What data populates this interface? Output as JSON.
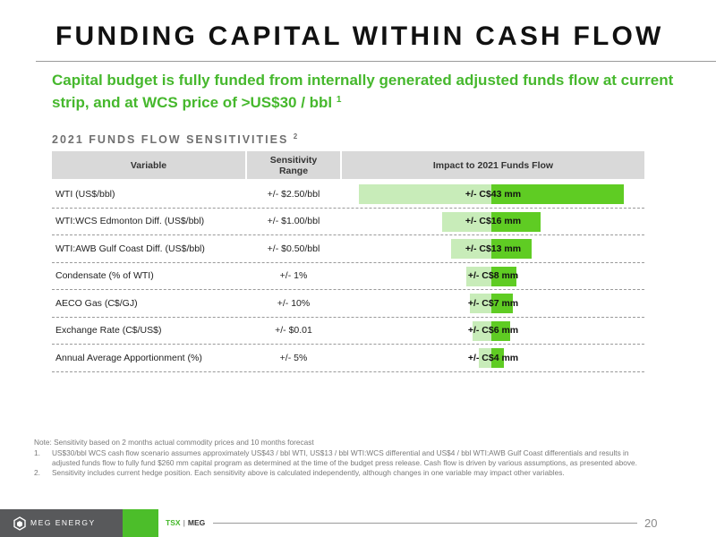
{
  "page": {
    "title": "FUNDING CAPITAL WITHIN CASH FLOW",
    "subtitle": "Capital budget is fully funded from internally generated adjusted funds flow at current strip, and at WCS price of >US$30 / bbl",
    "subtitle_note": "1",
    "section_heading": "2021 FUNDS FLOW SENSITIVITIES",
    "section_note": "2"
  },
  "table": {
    "headers": {
      "variable": "Variable",
      "range_line1": "Sensitivity",
      "range_line2": "Range",
      "impact": "Impact to 2021 Funds Flow"
    },
    "rows": [
      {
        "variable": "WTI (US$/bbl)",
        "range": "+/- $2.50/bbl",
        "impact_label": "+/- C$43 mm",
        "impact_mm": 43
      },
      {
        "variable": "WTI:WCS Edmonton Diff. (US$/bbl)",
        "range": "+/- $1.00/bbl",
        "impact_label": "+/- C$16 mm",
        "impact_mm": 16
      },
      {
        "variable": "WTI:AWB Gulf Coast Diff. (US$/bbl)",
        "range": "+/- $0.50/bbl",
        "impact_label": "+/- C$13 mm",
        "impact_mm": 13
      },
      {
        "variable": "Condensate (% of WTI)",
        "range": "+/- 1%",
        "impact_label": "+/- C$8 mm",
        "impact_mm": 8
      },
      {
        "variable": "AECO Gas (C$/GJ)",
        "range": "+/- 10%",
        "impact_label": "+/- C$7 mm",
        "impact_mm": 7
      },
      {
        "variable": "Exchange Rate (C$/US$)",
        "range": "+/- $0.01",
        "impact_label": "+/- C$6 mm",
        "impact_mm": 6
      },
      {
        "variable": "Annual Average Apportionment (%)",
        "range": "+/- 5%",
        "impact_label": "+/- C$4 mm",
        "impact_mm": 4
      }
    ],
    "colors": {
      "bar_low": "#c8ecb9",
      "bar_high": "#5fcc23",
      "header_bg": "#d9d9d9"
    }
  },
  "footnotes": {
    "note": "Note: Sensitivity based on 2 months actual commodity prices and 10 months forecast",
    "items": [
      {
        "num": "1.",
        "text": "US$30/bbl WCS cash flow scenario assumes approximately US$43 / bbl WTI, US$13 / bbl WTI:WCS differential and US$4 / bbl WTI:AWB Gulf Coast differentials and results in adjusted funds flow to fully fund $260 mm capital program as determined at the time of the budget press release. Cash flow is driven by various assumptions, as presented above."
      },
      {
        "num": "2.",
        "text": "Sensitivity includes current hedge position. Each sensitivity above is calculated independently, although changes in one variable may impact other variables."
      }
    ]
  },
  "footer": {
    "logo_text": "MEG ENERGY",
    "ticker_exchange": "TSX",
    "ticker_separator": "|",
    "ticker_symbol": "MEG",
    "page_number": "20",
    "accent_color": "#4cbe2a"
  }
}
